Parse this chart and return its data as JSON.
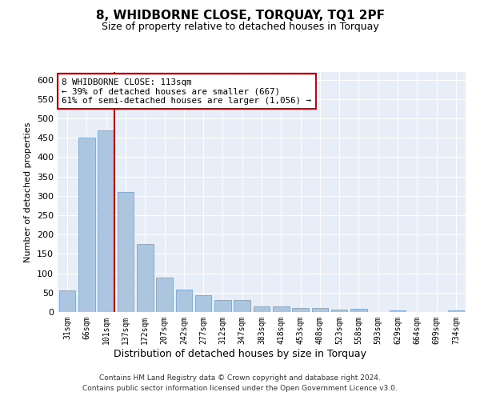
{
  "title": "8, WHIDBORNE CLOSE, TORQUAY, TQ1 2PF",
  "subtitle": "Size of property relative to detached houses in Torquay",
  "xlabel": "Distribution of detached houses by size in Torquay",
  "ylabel": "Number of detached properties",
  "categories": [
    "31sqm",
    "66sqm",
    "101sqm",
    "137sqm",
    "172sqm",
    "207sqm",
    "242sqm",
    "277sqm",
    "312sqm",
    "347sqm",
    "383sqm",
    "418sqm",
    "453sqm",
    "488sqm",
    "523sqm",
    "558sqm",
    "593sqm",
    "629sqm",
    "664sqm",
    "699sqm",
    "734sqm"
  ],
  "values": [
    55,
    450,
    470,
    310,
    175,
    88,
    58,
    43,
    30,
    32,
    15,
    15,
    10,
    10,
    6,
    8,
    0,
    5,
    0,
    0,
    5
  ],
  "bar_color": "#adc6e0",
  "bar_edge_color": "#6699cc",
  "background_color": "#e8eef8",
  "grid_color": "#ffffff",
  "property_line_color": "#cc0000",
  "annotation_text": "8 WHIDBORNE CLOSE: 113sqm\n← 39% of detached houses are smaller (667)\n61% of semi-detached houses are larger (1,056) →",
  "annotation_box_color": "#ffffff",
  "annotation_box_edge_color": "#cc0000",
  "ylim": [
    0,
    620
  ],
  "yticks": [
    0,
    50,
    100,
    150,
    200,
    250,
    300,
    350,
    400,
    450,
    500,
    550,
    600
  ],
  "footer_line1": "Contains HM Land Registry data © Crown copyright and database right 2024.",
  "footer_line2": "Contains public sector information licensed under the Open Government Licence v3.0."
}
